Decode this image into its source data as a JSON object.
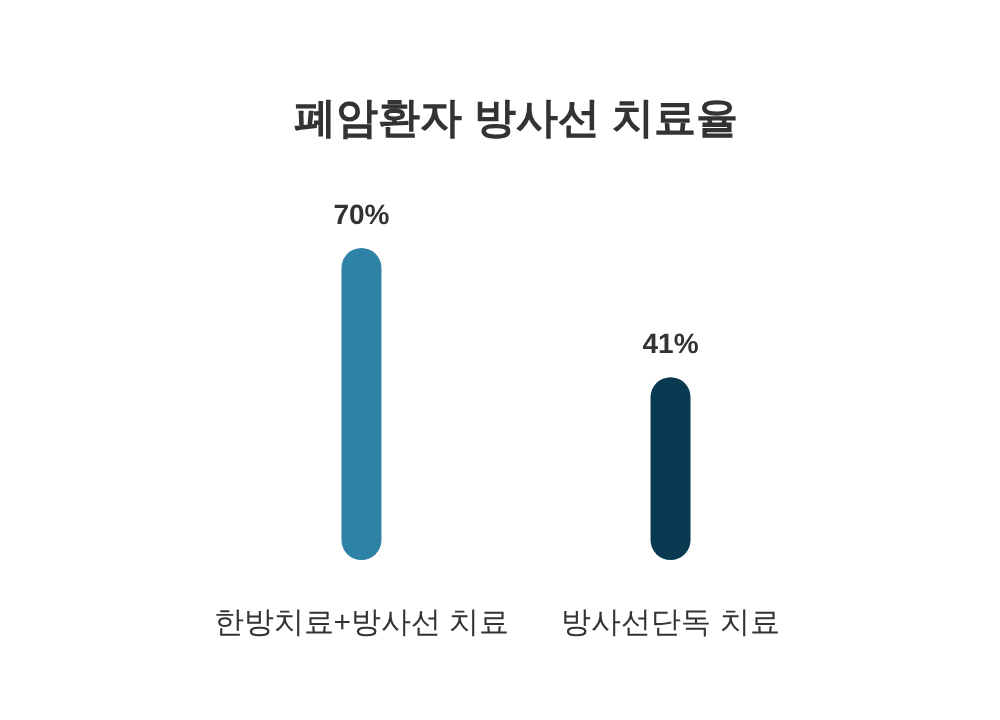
{
  "chart_data": {
    "type": "bar",
    "title": "폐암환자 방사선 치료율",
    "categories": [
      "한방치료+방사선 치료",
      "방사선단독 치료"
    ],
    "values": [
      70,
      41
    ],
    "colors": [
      "#2e82a6",
      "#0a3a52"
    ],
    "data_labels": true,
    "value_labels": [
      "70%",
      "41%"
    ]
  }
}
